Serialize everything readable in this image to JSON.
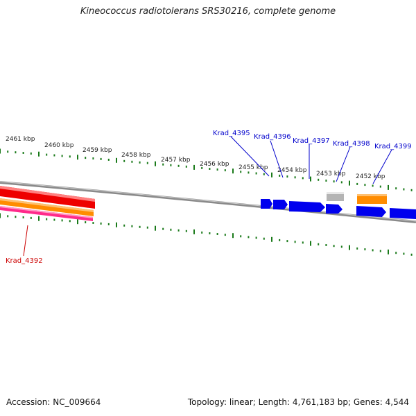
{
  "title": "Kineococcus radiotolerans SRS30216, complete genome",
  "footer": {
    "accession": "Accession: NC_009664",
    "summary": "Topology: linear; Length: 4,761,183 bp; Genes: 4,544"
  },
  "scale_labels": [
    "2461 kbp",
    "2460 kbp",
    "2459 kbp",
    "2458 kbp",
    "2457 kbp",
    "2456 kbp",
    "2455 kbp",
    "2454 kbp",
    "2453 kbp",
    "2452 kbp"
  ],
  "genes": [
    {
      "name": "Krad_4395",
      "color": "#0000cc"
    },
    {
      "name": "Krad_4396",
      "color": "#0000cc"
    },
    {
      "name": "Krad_4397",
      "color": "#0000cc"
    },
    {
      "name": "Krad_4398",
      "color": "#0000cc"
    },
    {
      "name": "Krad_4399",
      "color": "#0000cc"
    },
    {
      "name": "Krad_4392",
      "color": "#cc0000"
    }
  ],
  "colors": {
    "backbone": "#8a8a8a",
    "ticks": "#1a7a1a",
    "cds_forward": "#0000ee",
    "cds_reverse_red": "#ee0000",
    "cds_orange": "#ff8c00",
    "cds_pink": "#ff2a8a",
    "cds_gray": "#b4b4b4"
  }
}
